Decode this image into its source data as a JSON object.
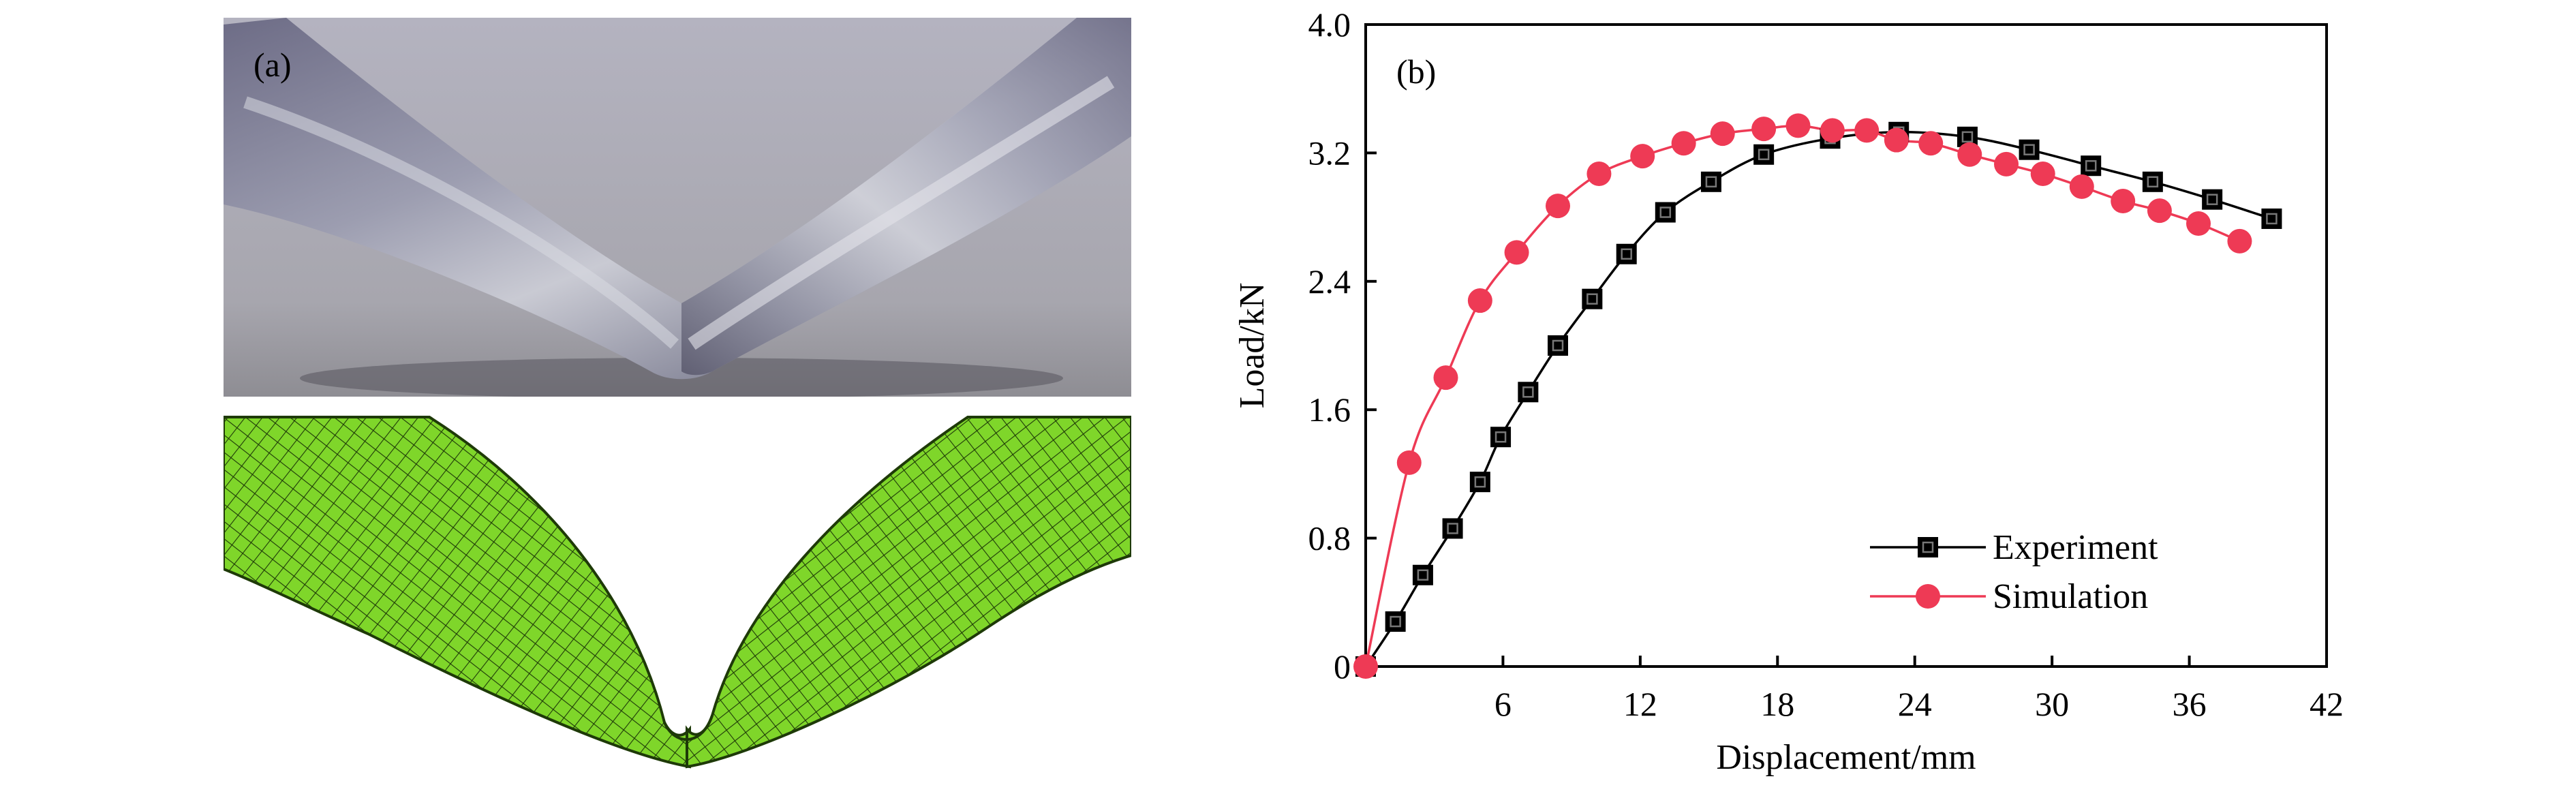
{
  "panels": {
    "a_label": "(a)",
    "b_label": "(b)"
  },
  "colors": {
    "experiment": "#000000",
    "simulation": "#ee3a55",
    "mesh_fill": "#7fd62a",
    "mesh_line": "#1e3a08"
  },
  "chart_data": {
    "type": "line",
    "title": "",
    "xlabel": "Displacement/mm",
    "ylabel": "Load/kN",
    "xlim": [
      0,
      42
    ],
    "ylim": [
      0,
      4.0
    ],
    "x_ticks": [
      6,
      12,
      18,
      24,
      30,
      36,
      42
    ],
    "x_tick_labels": [
      "6",
      "12",
      "18",
      "24",
      "30",
      "36",
      "42"
    ],
    "y_ticks": [
      0,
      0.8,
      1.6,
      2.4,
      3.2,
      4.0
    ],
    "y_tick_labels": [
      "0",
      "0.8",
      "1.6",
      "2.4",
      "3.2",
      "4.0"
    ],
    "grid": false,
    "legend_position": "bottom-right",
    "series": [
      {
        "name": "Experiment",
        "marker": "square",
        "color": "#000000",
        "x": [
          0,
          1.3,
          2.5,
          3.8,
          5.0,
          5.9,
          7.1,
          8.4,
          9.9,
          11.4,
          13.1,
          15.1,
          17.4,
          20.3,
          23.3,
          26.3,
          29.0,
          31.7,
          34.4,
          37.0,
          39.6
        ],
        "y": [
          0,
          0.28,
          0.57,
          0.86,
          1.15,
          1.43,
          1.71,
          2.0,
          2.29,
          2.57,
          2.83,
          3.02,
          3.19,
          3.29,
          3.33,
          3.3,
          3.22,
          3.12,
          3.02,
          2.91,
          2.79
        ]
      },
      {
        "name": "Simulation",
        "marker": "circle",
        "color": "#ee3a55",
        "x": [
          0,
          1.9,
          3.5,
          5.0,
          6.6,
          8.4,
          10.2,
          12.1,
          13.9,
          15.6,
          17.4,
          18.9,
          20.4,
          21.9,
          23.2,
          24.7,
          26.4,
          28.0,
          29.6,
          31.3,
          33.1,
          34.7,
          36.4,
          38.2
        ],
        "y": [
          0,
          1.27,
          1.8,
          2.28,
          2.58,
          2.87,
          3.07,
          3.18,
          3.26,
          3.32,
          3.35,
          3.37,
          3.34,
          3.34,
          3.28,
          3.26,
          3.19,
          3.13,
          3.07,
          2.99,
          2.9,
          2.84,
          2.76,
          2.65
        ]
      }
    ]
  }
}
